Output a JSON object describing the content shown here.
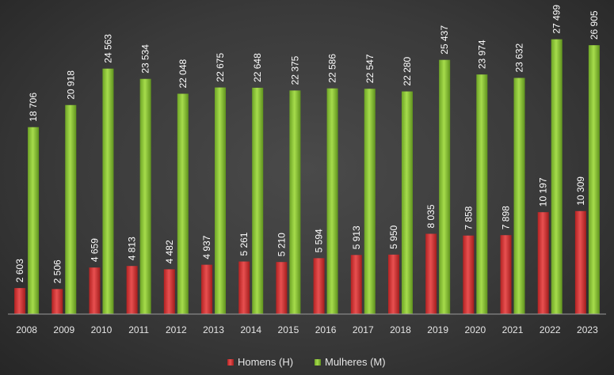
{
  "chart_data": {
    "type": "bar",
    "title": "",
    "xlabel": "",
    "ylabel": "",
    "categories": [
      "2008",
      "2009",
      "2010",
      "2011",
      "2012",
      "2013",
      "2014",
      "2015",
      "2016",
      "2017",
      "2018",
      "2019",
      "2020",
      "2021",
      "2022",
      "2023"
    ],
    "series": [
      {
        "name": "Homens (H)",
        "color": "#d43a3a",
        "values": [
          2603,
          2506,
          4659,
          4813,
          4482,
          4937,
          5261,
          5210,
          5594,
          5913,
          5950,
          8035,
          7858,
          7898,
          10197,
          10309
        ],
        "labels": [
          "2 603",
          "2 506",
          "4 659",
          "4 813",
          "4 482",
          "4 937",
          "5 261",
          "5 210",
          "5 594",
          "5 913",
          "5 950",
          "8 035",
          "7 858",
          "7 898",
          "10 197",
          "10 309"
        ]
      },
      {
        "name": "Mulheres (M)",
        "color": "#8cc43c",
        "values": [
          18706,
          20918,
          24563,
          23534,
          22048,
          22675,
          22648,
          22375,
          22586,
          22547,
          22280,
          25437,
          23974,
          23632,
          27499,
          26905
        ],
        "labels": [
          "18 706",
          "20 918",
          "24 563",
          "23 534",
          "22 048",
          "22 675",
          "22 648",
          "22 375",
          "22 586",
          "22 547",
          "22 280",
          "25 437",
          "23 974",
          "23 632",
          "27 499",
          "26 905"
        ]
      }
    ],
    "ylim": [
      0,
      28500
    ],
    "grid": false,
    "legend": "bottom"
  }
}
